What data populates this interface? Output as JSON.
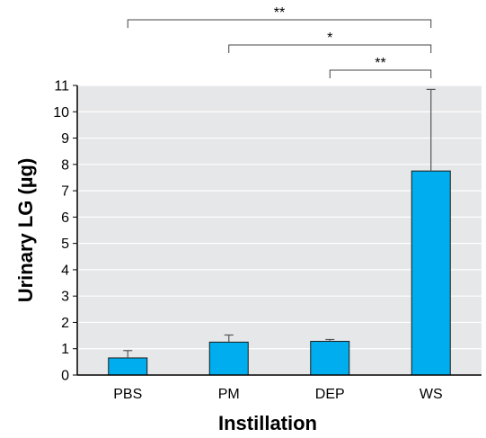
{
  "chart_data": {
    "type": "bar",
    "categories": [
      "PBS",
      "PM",
      "DEP",
      "WS"
    ],
    "values": [
      0.65,
      1.25,
      1.28,
      7.75
    ],
    "error_upper": [
      0.93,
      1.52,
      1.35,
      10.85
    ],
    "xlabel": "Instillation",
    "ylabel": "Urinary LG (µg)",
    "ylim": [
      0,
      11
    ],
    "yticks": [
      "0",
      "1",
      "2",
      "3",
      "4",
      "5",
      "6",
      "7",
      "8",
      "9",
      "10",
      "11"
    ],
    "grid": true,
    "colors": {
      "bar": "#00aeef",
      "plot_bg": "#e6e7e8",
      "grid": "#ffffff",
      "axis": "#000000",
      "error": "#555555"
    },
    "significance": [
      {
        "from": "PBS",
        "to": "WS",
        "label": "**"
      },
      {
        "from": "PM",
        "to": "WS",
        "label": "*"
      },
      {
        "from": "DEP",
        "to": "WS",
        "label": "**"
      }
    ]
  }
}
